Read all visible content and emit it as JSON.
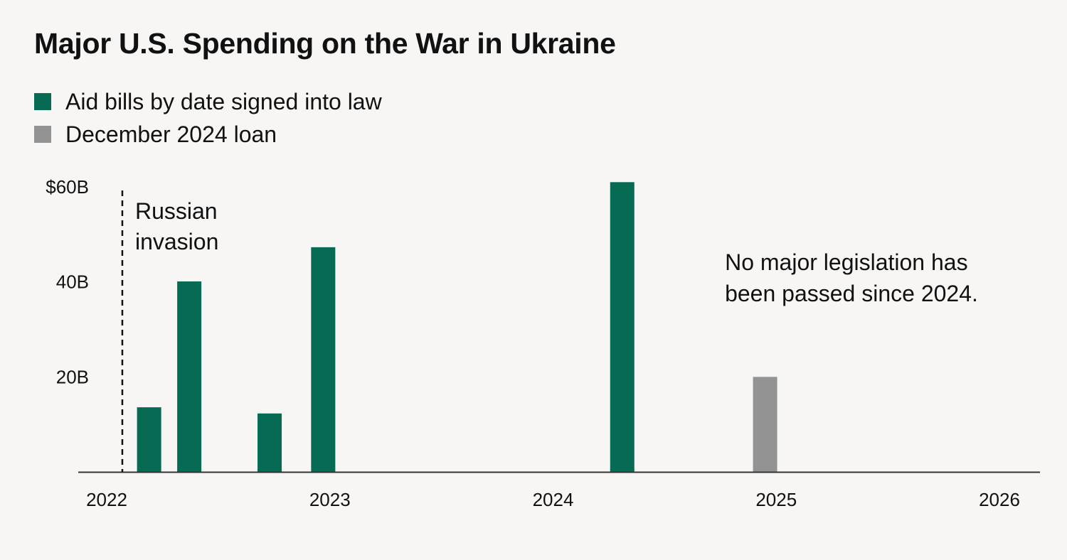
{
  "title": "Major U.S. Spending on the War in Ukraine",
  "legend": [
    {
      "label": "Aid bills by date signed into law",
      "color": "#066b52"
    },
    {
      "label": "December 2024 loan",
      "color": "#939393"
    }
  ],
  "chart_data": {
    "type": "bar",
    "title": "Major U.S. Spending on the War in Ukraine",
    "xlabel": "",
    "ylabel": "",
    "xlim": [
      2022,
      2026
    ],
    "ylim": [
      0,
      60
    ],
    "y_ticks": [
      {
        "value": 20,
        "label": "20B"
      },
      {
        "value": 40,
        "label": "40B"
      },
      {
        "value": 60,
        "label": "$60B"
      }
    ],
    "x_ticks": [
      {
        "value": 2022,
        "label": "2022"
      },
      {
        "value": 2023,
        "label": "2023"
      },
      {
        "value": 2024,
        "label": "2024"
      },
      {
        "value": 2025,
        "label": "2025"
      },
      {
        "value": 2026,
        "label": "2026"
      }
    ],
    "series": [
      {
        "name": "Aid bills by date signed into law",
        "color": "#066b52",
        "points": [
          {
            "x": 2022.19,
            "value": 13.6
          },
          {
            "x": 2022.37,
            "value": 40.1
          },
          {
            "x": 2022.73,
            "value": 12.3
          },
          {
            "x": 2022.97,
            "value": 47.3
          }
        ]
      },
      {
        "name": "Aid bills by date signed into law",
        "color": "#066b52",
        "points": [
          {
            "x": 2024.31,
            "value": 61.0
          }
        ]
      },
      {
        "name": "December 2024 loan",
        "color": "#939393",
        "points": [
          {
            "x": 2024.95,
            "value": 20.0
          }
        ]
      }
    ],
    "annotations": [
      {
        "x": 2022.07,
        "lines": [
          "Russian",
          "invasion"
        ],
        "style": "dashed-vertical-line"
      },
      {
        "x": 2024.77,
        "lines": [
          "No major legislation has",
          "been passed since 2024."
        ]
      }
    ]
  }
}
